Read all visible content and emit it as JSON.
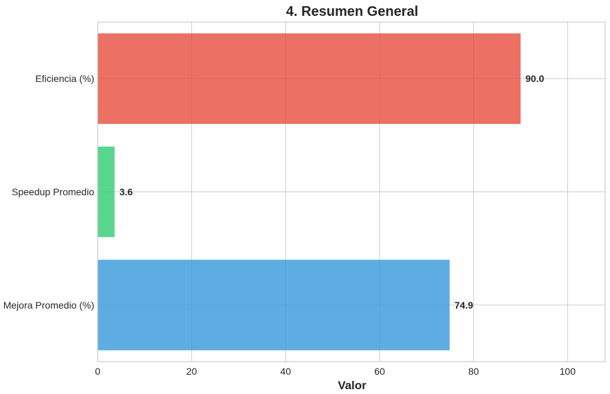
{
  "chart_data": {
    "type": "bar",
    "orientation": "horizontal",
    "title": "4. Resumen General",
    "xlabel": "Valor",
    "ylabel": "",
    "xlim": [
      0,
      108
    ],
    "xticks": [
      0,
      20,
      40,
      60,
      80,
      100
    ],
    "xtick_labels": [
      "0",
      "20",
      "40",
      "60",
      "80",
      "100"
    ],
    "grid": true,
    "categories": [
      "Eficiencia (%)",
      "Speedup Promedio",
      "Mejora Promedio (%)"
    ],
    "values": [
      90.0,
      3.6,
      74.9
    ],
    "value_labels": [
      "90.0",
      "3.6",
      "74.9"
    ],
    "colors": [
      "#e74c3c",
      "#2ecc71",
      "#3498db"
    ]
  }
}
